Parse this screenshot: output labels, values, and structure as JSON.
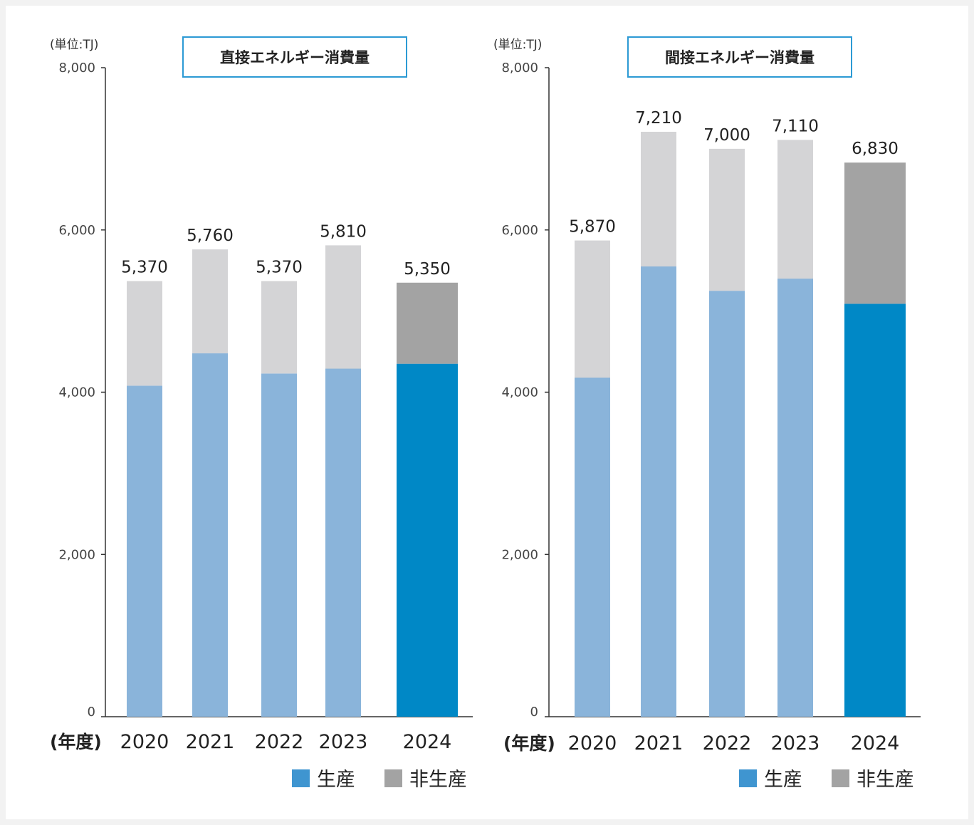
{
  "colors": {
    "production_past": "#8ab4da",
    "production_latest": "#0088c6",
    "non_production_past": "#d4d4d6",
    "non_production_latest": "#a3a3a3",
    "title_border": "#2c9ad4",
    "legend_production": "#3f95d0",
    "legend_non_production": "#a3a3a3"
  },
  "common": {
    "x_label": "(年度)",
    "legend": [
      "生産",
      "非生産"
    ]
  },
  "chart_data": [
    {
      "type": "bar",
      "stacked": true,
      "title": "直接エネルギー消費量",
      "ylabel": "(単位:TJ)",
      "ylim": [
        0,
        8000
      ],
      "yticks": [
        0,
        2000,
        4000,
        6000,
        8000
      ],
      "ytick_labels": [
        "0",
        "2,000",
        "4,000",
        "6,000",
        "8,000"
      ],
      "categories": [
        "2020",
        "2021",
        "2022",
        "2023",
        "2024"
      ],
      "series": [
        {
          "name": "生産",
          "values": [
            4080,
            4480,
            4230,
            4290,
            4350
          ]
        },
        {
          "name": "非生産",
          "values": [
            1290,
            1280,
            1140,
            1520,
            1000
          ]
        }
      ],
      "total_labels": [
        "5,370",
        "5,760",
        "5,370",
        "5,810",
        "5,350"
      ],
      "totals": [
        5370,
        5760,
        5370,
        5810,
        5350
      ]
    },
    {
      "type": "bar",
      "stacked": true,
      "title": "間接エネルギー消費量",
      "ylabel": "(単位:TJ)",
      "ylim": [
        0,
        8000
      ],
      "yticks": [
        0,
        2000,
        4000,
        6000,
        8000
      ],
      "ytick_labels": [
        "0",
        "2,000",
        "4,000",
        "6,000",
        "8,000"
      ],
      "categories": [
        "2020",
        "2021",
        "2022",
        "2023",
        "2024"
      ],
      "series": [
        {
          "name": "生産",
          "values": [
            4180,
            5550,
            5250,
            5400,
            5090
          ]
        },
        {
          "name": "非生産",
          "values": [
            1690,
            1660,
            1750,
            1710,
            1740
          ]
        }
      ],
      "total_labels": [
        "5,870",
        "7,210",
        "7,000",
        "7,110",
        "6,830"
      ],
      "totals": [
        5870,
        7210,
        7000,
        7110,
        6830
      ]
    }
  ]
}
